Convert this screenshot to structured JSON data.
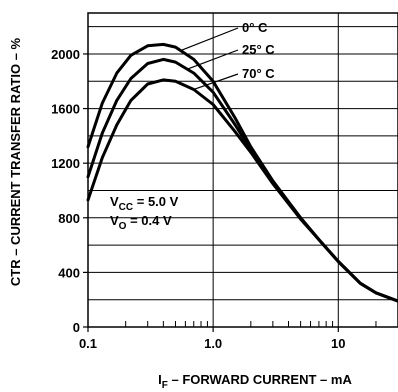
{
  "chart_data": {
    "type": "line",
    "xscale": "log",
    "xlim": [
      0.1,
      30
    ],
    "ylim": [
      0,
      2300
    ],
    "grid": true,
    "xlabel": "I_F – FORWARD CURRENT – mA",
    "xlabel_main": "I",
    "xlabel_sub": "F",
    "xlabel_rest": " – FORWARD CURRENT – mA",
    "ylabel": "CTR – CURRENT TRANSFER RATIO – %",
    "xticks": [
      {
        "value": 0.1,
        "label": "0.1"
      },
      {
        "value": 1,
        "label": "1.0"
      },
      {
        "value": 10,
        "label": "10"
      }
    ],
    "yticks": [
      {
        "value": 0,
        "label": "0"
      },
      {
        "value": 400,
        "label": "400"
      },
      {
        "value": 800,
        "label": "800"
      },
      {
        "value": 1200,
        "label": "1200"
      },
      {
        "value": 1600,
        "label": "1600"
      },
      {
        "value": 2000,
        "label": "2000"
      }
    ],
    "series": [
      {
        "name": "0° C",
        "x": [
          0.1,
          0.13,
          0.17,
          0.22,
          0.3,
          0.4,
          0.5,
          0.7,
          1.0,
          1.5,
          2,
          3,
          5,
          7,
          10,
          15,
          20,
          30
        ],
        "y": [
          1320,
          1640,
          1860,
          1990,
          2060,
          2070,
          2050,
          1960,
          1800,
          1530,
          1320,
          1070,
          800,
          640,
          480,
          320,
          250,
          190
        ]
      },
      {
        "name": "25° C",
        "x": [
          0.1,
          0.13,
          0.17,
          0.22,
          0.3,
          0.4,
          0.5,
          0.7,
          1.0,
          1.5,
          2,
          3,
          5,
          7,
          10,
          15,
          20,
          30
        ],
        "y": [
          1100,
          1420,
          1660,
          1820,
          1930,
          1960,
          1940,
          1860,
          1720,
          1480,
          1300,
          1060,
          800,
          640,
          480,
          320,
          250,
          190
        ]
      },
      {
        "name": "70° C",
        "x": [
          0.1,
          0.13,
          0.17,
          0.22,
          0.3,
          0.4,
          0.5,
          0.7,
          1.0,
          1.5,
          2,
          3,
          5,
          7,
          10,
          15,
          20,
          30
        ],
        "y": [
          930,
          1240,
          1480,
          1660,
          1780,
          1810,
          1800,
          1740,
          1630,
          1430,
          1280,
          1050,
          790,
          640,
          480,
          320,
          250,
          190
        ]
      }
    ],
    "conditions": [
      {
        "main": "V",
        "sub": "CC",
        "rest": " = 5.0 V"
      },
      {
        "main": "V",
        "sub": "O",
        "rest": " = 0.4 V"
      }
    ]
  }
}
